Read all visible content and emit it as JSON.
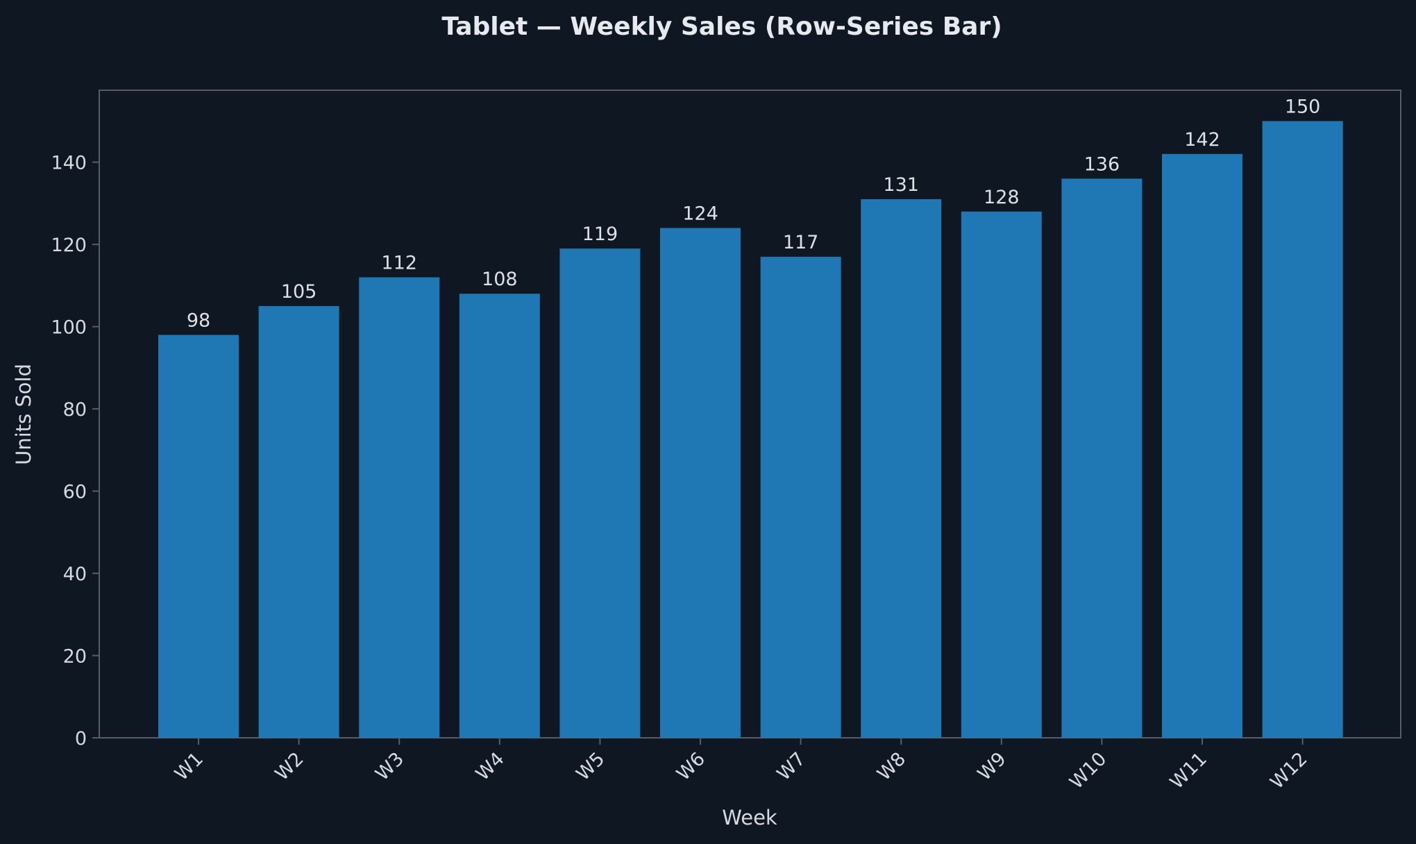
{
  "chart_data": {
    "type": "bar",
    "title": "Tablet — Weekly Sales (Row-Series Bar)",
    "xlabel": "Week",
    "ylabel": "Units Sold",
    "categories": [
      "W1",
      "W2",
      "W3",
      "W4",
      "W5",
      "W6",
      "W7",
      "W8",
      "W9",
      "W10",
      "W11",
      "W12"
    ],
    "values": [
      98,
      105,
      112,
      108,
      119,
      124,
      117,
      131,
      128,
      136,
      142,
      150
    ],
    "ylim": [
      0,
      157.5
    ],
    "yticks": [
      0,
      20,
      40,
      60,
      80,
      100,
      120,
      140
    ],
    "grid": false,
    "legend": "none",
    "colors": {
      "background": "#0f1723",
      "bar": "#1f77b4",
      "axis": "#565d69",
      "text": "#d6dae1"
    }
  }
}
